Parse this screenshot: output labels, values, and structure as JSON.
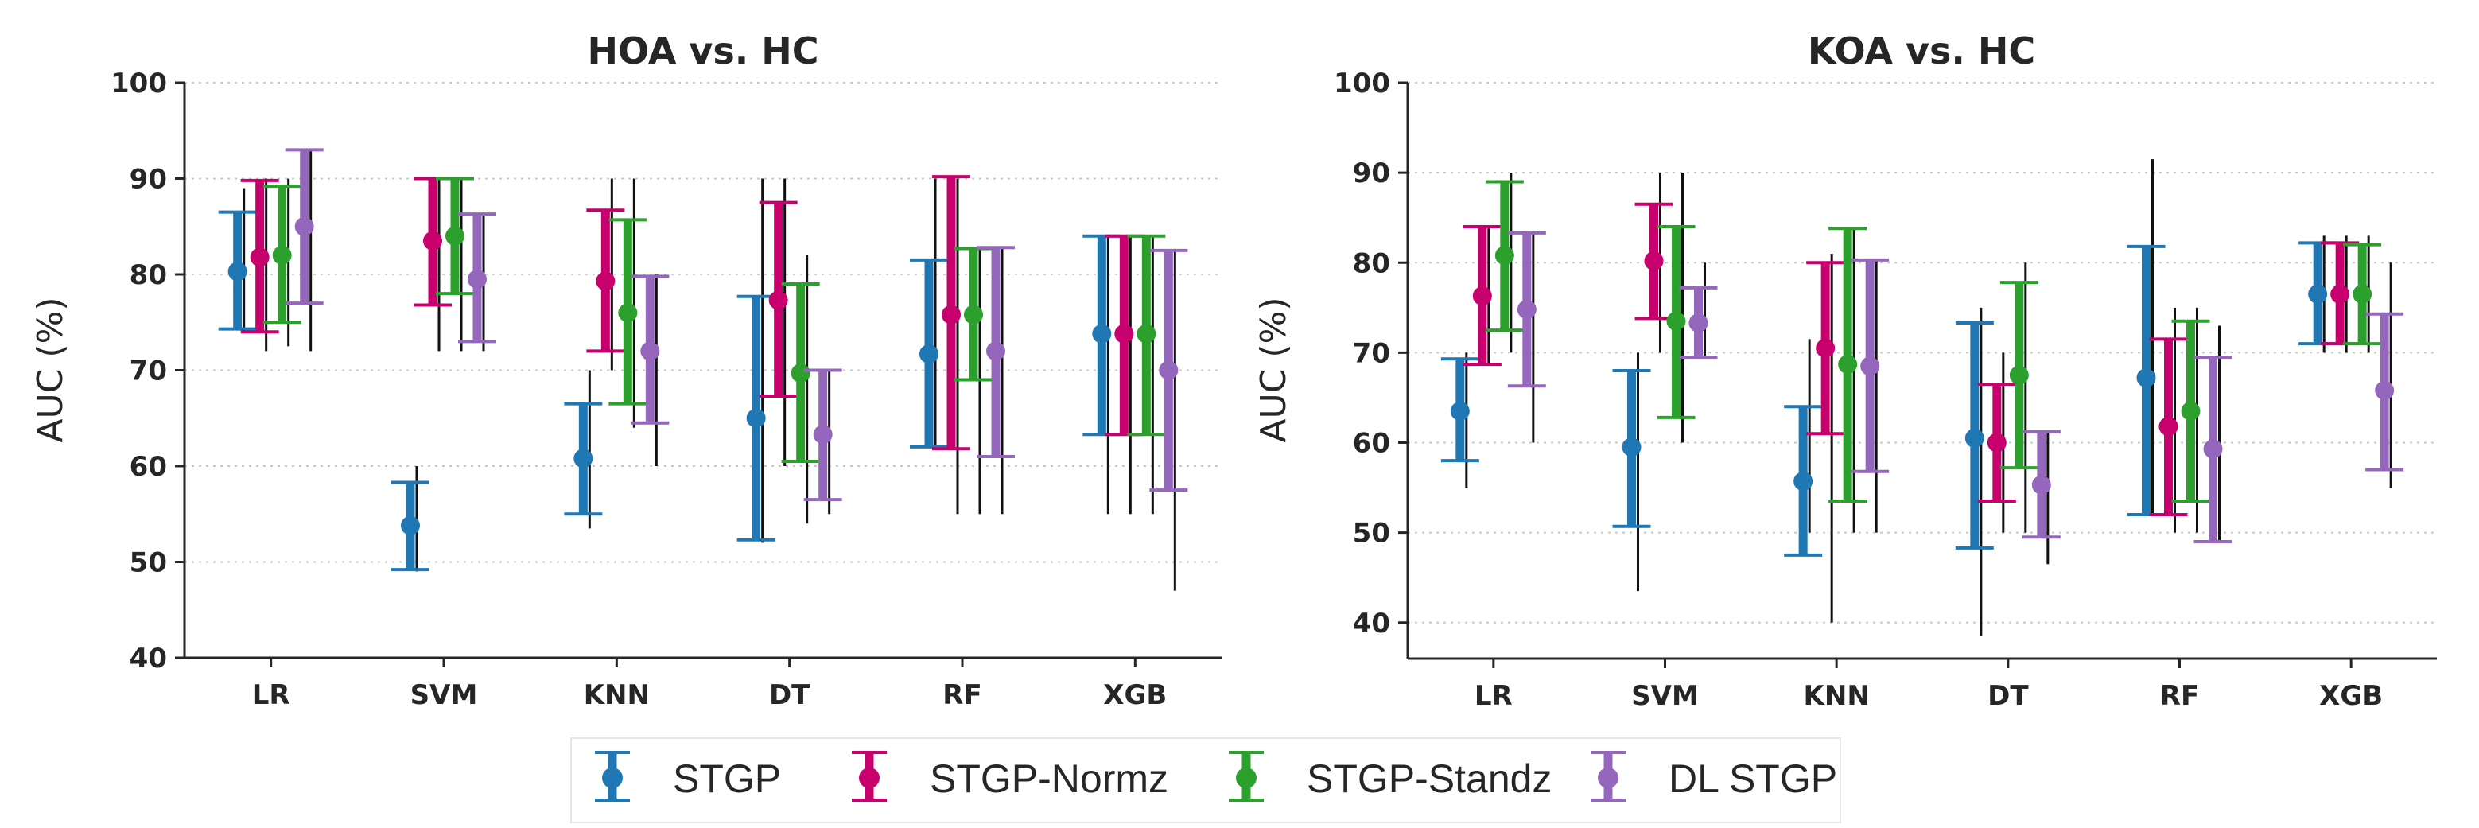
{
  "chart_data": [
    {
      "type": "errorbar",
      "title": "HOA vs. HC",
      "xlabel": "",
      "ylabel": "AUC (%)",
      "ylim": [
        40,
        100
      ],
      "yticks": [
        "40",
        "50",
        "60",
        "70",
        "80",
        "90",
        "100"
      ],
      "categories": [
        "LR",
        "SVM",
        "KNN",
        "DT",
        "RF",
        "XGB"
      ],
      "grid": "horizontal-dotted",
      "series": [
        {
          "name": "STGP",
          "values": [
            80.3,
            53.8,
            60.8,
            65.0,
            71.7,
            73.8
          ],
          "ci_low": [
            74.3,
            49.2,
            55.0,
            52.3,
            62.0,
            63.3
          ],
          "ci_high": [
            86.5,
            58.3,
            66.5,
            77.7,
            81.5,
            84.0
          ],
          "range_low": [
            74.0,
            49.0,
            53.5,
            52.0,
            62.0,
            55.0
          ],
          "range_high": [
            89.0,
            60.0,
            70.0,
            90.0,
            90.0,
            84.0
          ]
        },
        {
          "name": "STGP-Normz",
          "values": [
            81.8,
            83.5,
            79.3,
            77.3,
            75.8,
            73.8
          ],
          "ci_low": [
            74.0,
            76.8,
            72.0,
            67.3,
            61.8,
            63.3
          ],
          "ci_high": [
            89.8,
            90.0,
            86.7,
            87.5,
            90.2,
            84.0
          ],
          "range_low": [
            72.0,
            72.0,
            70.0,
            60.0,
            55.0,
            55.0
          ],
          "range_high": [
            90.0,
            90.0,
            90.0,
            90.0,
            90.0,
            84.0
          ]
        },
        {
          "name": "STGP-Standz",
          "values": [
            82.0,
            84.0,
            76.0,
            69.7,
            75.8,
            73.8
          ],
          "ci_low": [
            75.0,
            78.0,
            66.5,
            60.5,
            69.0,
            63.3
          ],
          "ci_high": [
            89.2,
            90.0,
            85.7,
            79.0,
            82.7,
            84.0
          ],
          "range_low": [
            72.5,
            72.0,
            64.0,
            54.0,
            55.0,
            55.0
          ],
          "range_high": [
            90.0,
            90.0,
            90.0,
            82.0,
            82.7,
            84.0
          ]
        },
        {
          "name": "DL STGP",
          "values": [
            85.0,
            79.5,
            72.0,
            63.3,
            72.0,
            70.0
          ],
          "ci_low": [
            77.0,
            73.0,
            64.5,
            56.5,
            61.0,
            57.5
          ],
          "ci_high": [
            93.0,
            86.3,
            79.8,
            70.0,
            82.8,
            82.5
          ],
          "range_low": [
            72.0,
            72.0,
            60.0,
            55.0,
            55.0,
            47.0
          ],
          "range_high": [
            93.0,
            86.3,
            80.0,
            70.0,
            82.8,
            82.5
          ]
        }
      ]
    },
    {
      "type": "errorbar",
      "title": "KOA vs. HC",
      "xlabel": "",
      "ylabel": "AUC (%)",
      "ylim": [
        36,
        100
      ],
      "yticks": [
        "40",
        "50",
        "60",
        "70",
        "80",
        "90",
        "100"
      ],
      "categories": [
        "LR",
        "SVM",
        "KNN",
        "DT",
        "RF",
        "XGB"
      ],
      "grid": "horizontal-dotted",
      "series": [
        {
          "name": "STGP",
          "values": [
            63.5,
            59.5,
            55.7,
            60.5,
            67.2,
            76.5
          ],
          "ci_low": [
            58.0,
            50.7,
            47.5,
            48.3,
            52.0,
            71.0
          ],
          "ci_high": [
            69.3,
            68.0,
            64.0,
            73.3,
            81.8,
            82.2
          ],
          "range_low": [
            55.0,
            43.5,
            50.0,
            38.5,
            52.0,
            70.0
          ],
          "range_high": [
            70.0,
            70.0,
            71.5,
            75.0,
            91.5,
            83.0
          ]
        },
        {
          "name": "STGP-Normz",
          "values": [
            76.3,
            80.2,
            70.5,
            60.0,
            61.8,
            76.5
          ],
          "ci_low": [
            68.7,
            73.8,
            61.0,
            53.5,
            52.0,
            71.0
          ],
          "ci_high": [
            84.0,
            86.5,
            80.0,
            66.5,
            71.5,
            82.2
          ],
          "range_low": [
            68.7,
            70.0,
            40.0,
            50.0,
            50.0,
            70.0
          ],
          "range_high": [
            84.0,
            90.0,
            81.0,
            70.0,
            75.0,
            83.0
          ]
        },
        {
          "name": "STGP-Standz",
          "values": [
            80.8,
            73.5,
            68.7,
            67.5,
            63.5,
            76.5
          ],
          "ci_low": [
            72.5,
            62.8,
            53.5,
            57.2,
            53.5,
            71.0
          ],
          "ci_high": [
            89.0,
            84.0,
            83.8,
            77.8,
            73.5,
            82.0
          ],
          "range_low": [
            70.0,
            60.0,
            50.0,
            50.0,
            50.0,
            70.0
          ],
          "range_high": [
            90.0,
            90.0,
            83.8,
            80.0,
            75.0,
            83.0
          ]
        },
        {
          "name": "DL STGP",
          "values": [
            74.8,
            73.3,
            68.5,
            55.3,
            59.3,
            65.8
          ],
          "ci_low": [
            66.3,
            69.5,
            56.8,
            49.5,
            49.0,
            57.0
          ],
          "ci_high": [
            83.3,
            77.2,
            80.3,
            61.2,
            69.5,
            74.3
          ],
          "range_low": [
            60.0,
            69.5,
            50.0,
            46.5,
            49.0,
            55.0
          ],
          "range_high": [
            83.3,
            80.0,
            80.3,
            61.2,
            73.0,
            80.0
          ]
        }
      ]
    }
  ],
  "legend": {
    "position": "bottom-center",
    "items": [
      {
        "name": "STGP",
        "color": "#1f77b4"
      },
      {
        "name": "STGP-Normz",
        "color": "#c7006e"
      },
      {
        "name": "STGP-Standz",
        "color": "#2ca02c"
      },
      {
        "name": "DL STGP",
        "color": "#9467bd"
      }
    ]
  },
  "colors": [
    "#1f77b4",
    "#c7006e",
    "#2ca02c",
    "#9467bd"
  ]
}
